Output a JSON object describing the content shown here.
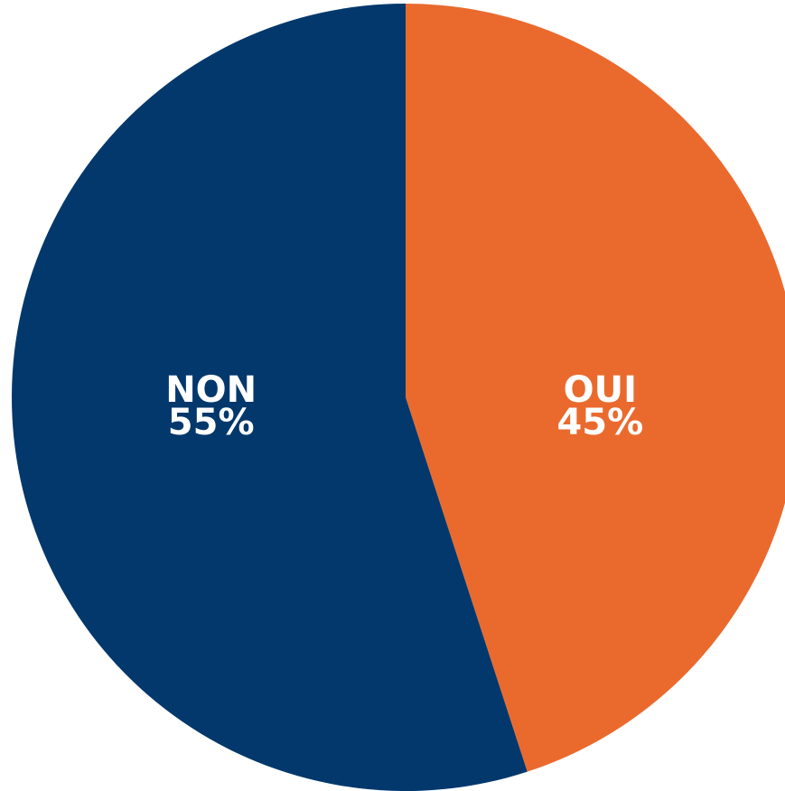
{
  "chart_data": {
    "type": "pie",
    "categories": [
      "OUI",
      "NON"
    ],
    "values": [
      45,
      55
    ],
    "value_labels": [
      "45%",
      "55%"
    ],
    "colors": [
      "#ea6a2e",
      "#02386c"
    ]
  }
}
